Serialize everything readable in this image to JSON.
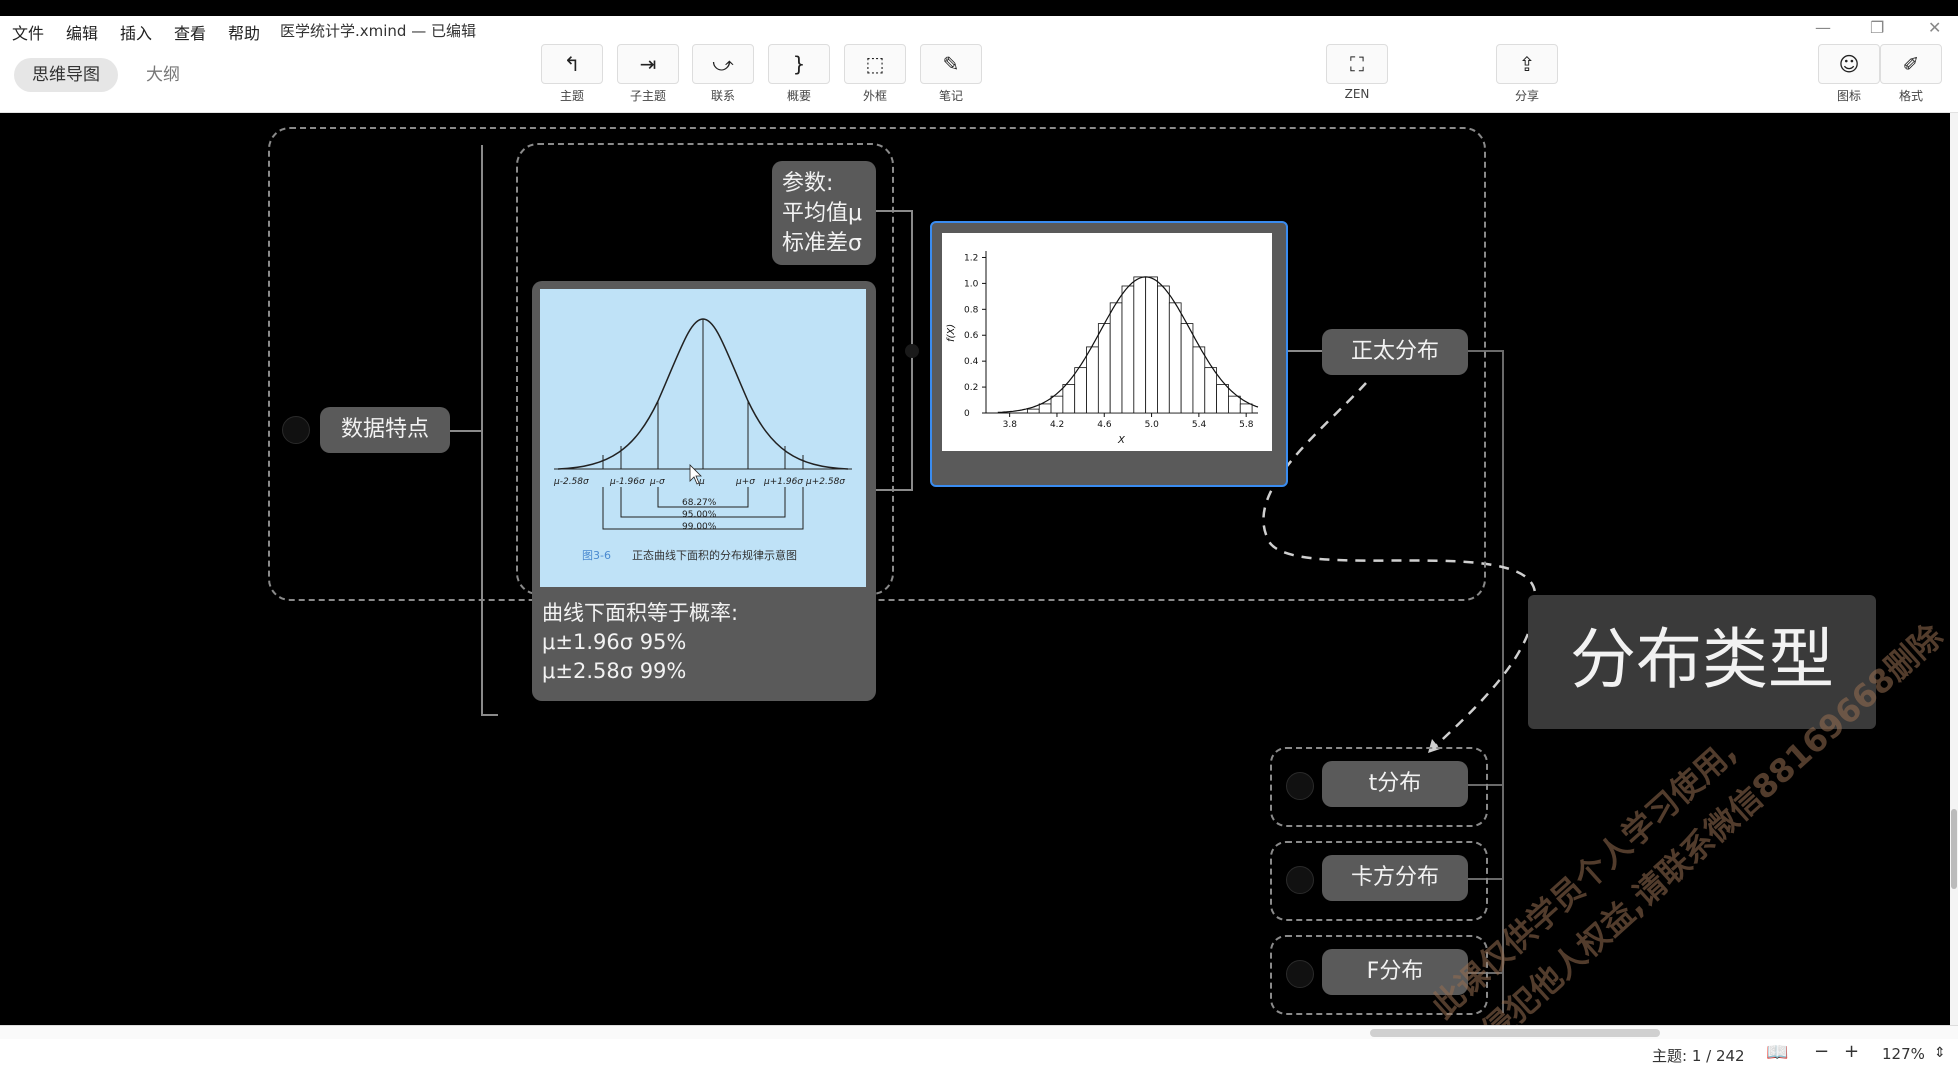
{
  "menu": [
    "文件",
    "编辑",
    "插入",
    "查看",
    "帮助"
  ],
  "document_title": "医学统计学.xmind — 已编辑",
  "view_tabs": [
    "思维导图",
    "大纲"
  ],
  "toolbar": [
    {
      "icon": "topic-icon",
      "label": "主题"
    },
    {
      "icon": "subtopic-icon",
      "label": "子主题"
    },
    {
      "icon": "relationship-icon",
      "label": "联系"
    },
    {
      "icon": "summary-brace-icon",
      "label": "概要"
    },
    {
      "icon": "boundary-icon",
      "label": "外框"
    },
    {
      "icon": "note-icon",
      "label": "笔记"
    }
  ],
  "zen": {
    "icon": "fullscreen-icon",
    "label": "ZEN"
  },
  "share": {
    "icon": "share-icon",
    "label": "分享"
  },
  "right_tools": [
    {
      "icon": "smiley-icon",
      "label": "图标"
    },
    {
      "icon": "format-brush-icon",
      "label": "格式"
    }
  ],
  "nodes": {
    "data_features": "数据特点",
    "params": "参数:\n平均值μ\n标准差σ",
    "area_note": "曲线下面积等于概率:\nμ±1.96σ    95%\nμ±2.58σ    99%",
    "normal": "正太分布",
    "dist_types": "分布类型",
    "t": "t分布",
    "chi": "卡方分布",
    "f": "F分布"
  },
  "normal_figure": {
    "ticks": [
      "μ-2.58σ",
      "μ-1.96σ",
      "μ-σ",
      "μ",
      "μ+σ",
      "μ+1.96σ",
      "μ+2.58σ"
    ],
    "bands": [
      "68.27%",
      "95.00%",
      "99.00%"
    ],
    "caption_id": "图3-6",
    "caption": "正态曲线下面积的分布规律示意图"
  },
  "chart_data": {
    "type": "bar",
    "xlabel": "X",
    "ylabel": "f(X)",
    "xticks": [
      "3.8",
      "4.2",
      "4.6",
      "5.0",
      "5.4",
      "5.8"
    ],
    "yticks": [
      "0",
      "0.2",
      "0.4",
      "0.6",
      "0.8",
      "1.0",
      "1.2"
    ],
    "xlim": [
      3.6,
      5.9
    ],
    "ylim": [
      0,
      1.25
    ],
    "x": [
      4.0,
      4.1,
      4.2,
      4.3,
      4.4,
      4.5,
      4.6,
      4.7,
      4.8,
      4.9,
      5.0,
      5.1,
      5.2,
      5.3,
      5.4,
      5.5,
      5.6,
      5.7,
      5.8
    ],
    "values": [
      0.03,
      0.07,
      0.13,
      0.22,
      0.35,
      0.51,
      0.69,
      0.85,
      0.98,
      1.05,
      1.05,
      0.98,
      0.85,
      0.69,
      0.51,
      0.35,
      0.22,
      0.13,
      0.07
    ]
  },
  "status": {
    "topic_count": "主题: 1 / 242",
    "zoom": "127%"
  },
  "watermark": [
    "此课仅供学员个人学习使用,",
    "侵犯他人权益,请联系微信88169668删除"
  ]
}
